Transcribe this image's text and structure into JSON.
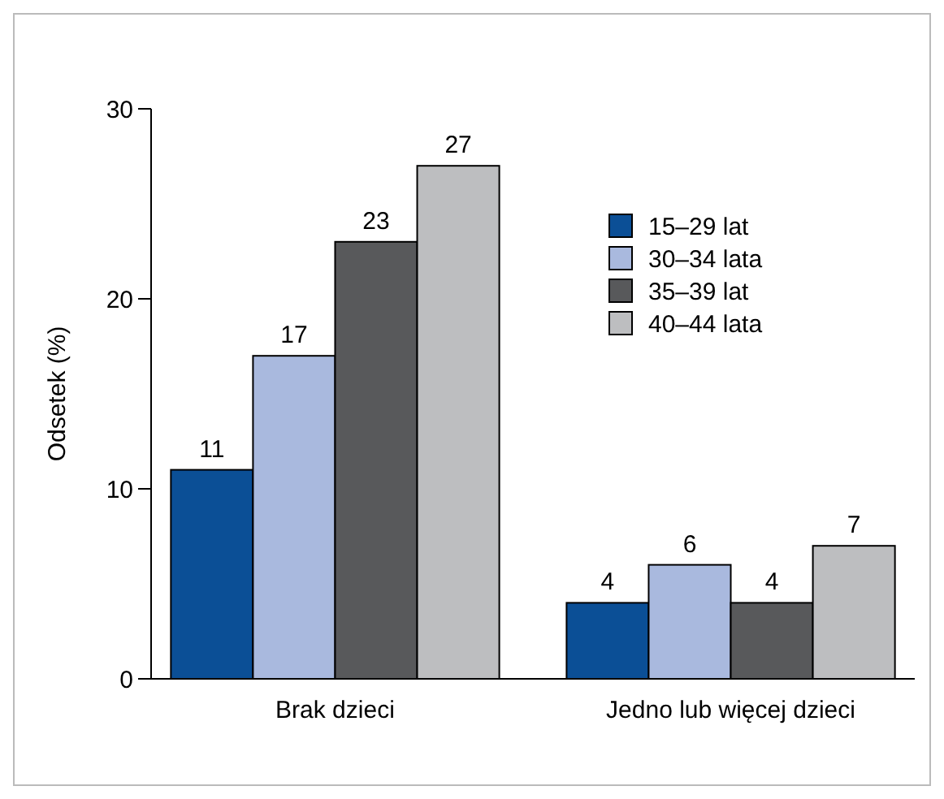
{
  "chart_data": {
    "type": "bar",
    "ylabel": "Odsetek (%)",
    "categories": [
      "Brak dzieci",
      "Jedno lub więcej dzieci"
    ],
    "series": [
      {
        "name": "15–29 lat",
        "color": "#0b4f96",
        "values": [
          11,
          4
        ]
      },
      {
        "name": "30–34 lata",
        "color": "#a9b9de",
        "values": [
          17,
          6
        ]
      },
      {
        "name": "35–39 lat",
        "color": "#58595b",
        "values": [
          23,
          4
        ]
      },
      {
        "name": "40–44 lata",
        "color": "#bdbec0",
        "values": [
          27,
          7
        ]
      }
    ],
    "ylim": [
      0,
      30
    ],
    "yticks": [
      0,
      10,
      20,
      30
    ],
    "data_labels": true,
    "legend": "top right",
    "grid": false
  }
}
